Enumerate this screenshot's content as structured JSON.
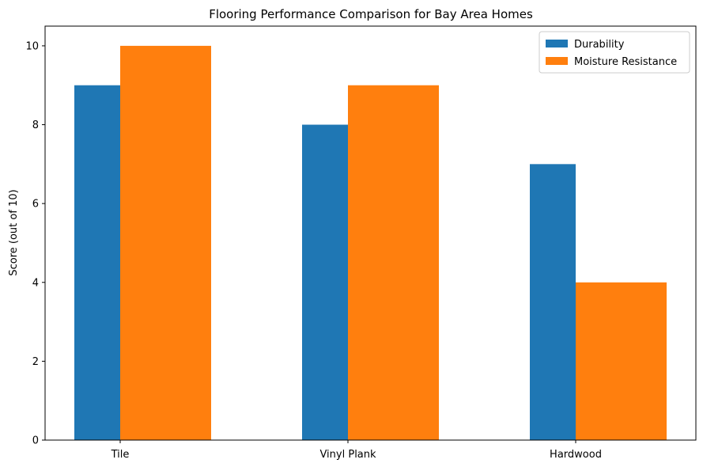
{
  "chart_data": {
    "type": "bar",
    "title": "Flooring Performance Comparison for Bay Area Homes",
    "xlabel": "",
    "ylabel": "Score (out of 10)",
    "categories": [
      "Tile",
      "Vinyl Plank",
      "Hardwood"
    ],
    "ylim": [
      0,
      10.5
    ],
    "yticks": [
      0,
      2,
      4,
      6,
      8,
      10
    ],
    "grid": false,
    "legend_position": "top-right",
    "series": [
      {
        "name": "Durability",
        "values": [
          9,
          8,
          7
        ],
        "color": "#1f77b4"
      },
      {
        "name": "Moisture Resistance",
        "values": [
          10,
          9,
          4
        ],
        "color": "#ff7f0e"
      }
    ]
  }
}
